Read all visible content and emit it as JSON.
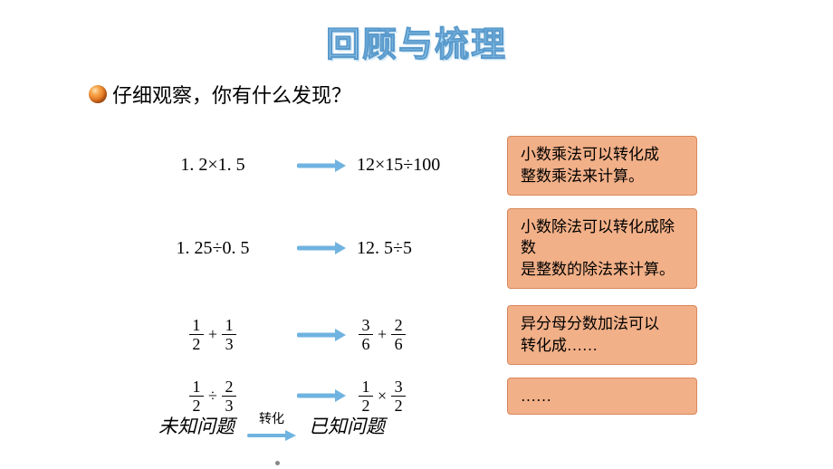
{
  "title": "回顾与梳理",
  "prompt": "仔细观察，你有什么发现？",
  "arrow_color": "#6fb3e0",
  "note_bg": "#f2b088",
  "note_border": "#d8875c",
  "rows": [
    {
      "left": "1. 2×1. 5",
      "right": "12×15÷100",
      "note_lines": [
        "小数乘法可以转化成",
        "整数乘法来计算。"
      ]
    },
    {
      "left": "1. 25÷0. 5",
      "right": "12. 5÷5",
      "note_lines": [
        "小数除法可以转化成除数",
        "是整数的除法来计算。"
      ]
    },
    {
      "left_frac": {
        "a_num": "1",
        "a_den": "2",
        "op": "+",
        "b_num": "1",
        "b_den": "3"
      },
      "right_frac": {
        "a_num": "3",
        "a_den": "6",
        "op": "+",
        "b_num": "2",
        "b_den": "6"
      },
      "note_lines": [
        "异分母分数加法可以",
        "转化成……"
      ]
    },
    {
      "left_frac": {
        "a_num": "1",
        "a_den": "2",
        "op": "÷",
        "b_num": "2",
        "b_den": "3"
      },
      "right_frac": {
        "a_num": "1",
        "a_den": "2",
        "op": "×",
        "b_num": "3",
        "b_den": "2"
      },
      "note_lines": [
        "……"
      ]
    }
  ],
  "summary": {
    "left": "未知问题",
    "label": "转化",
    "right": "已知问题"
  }
}
